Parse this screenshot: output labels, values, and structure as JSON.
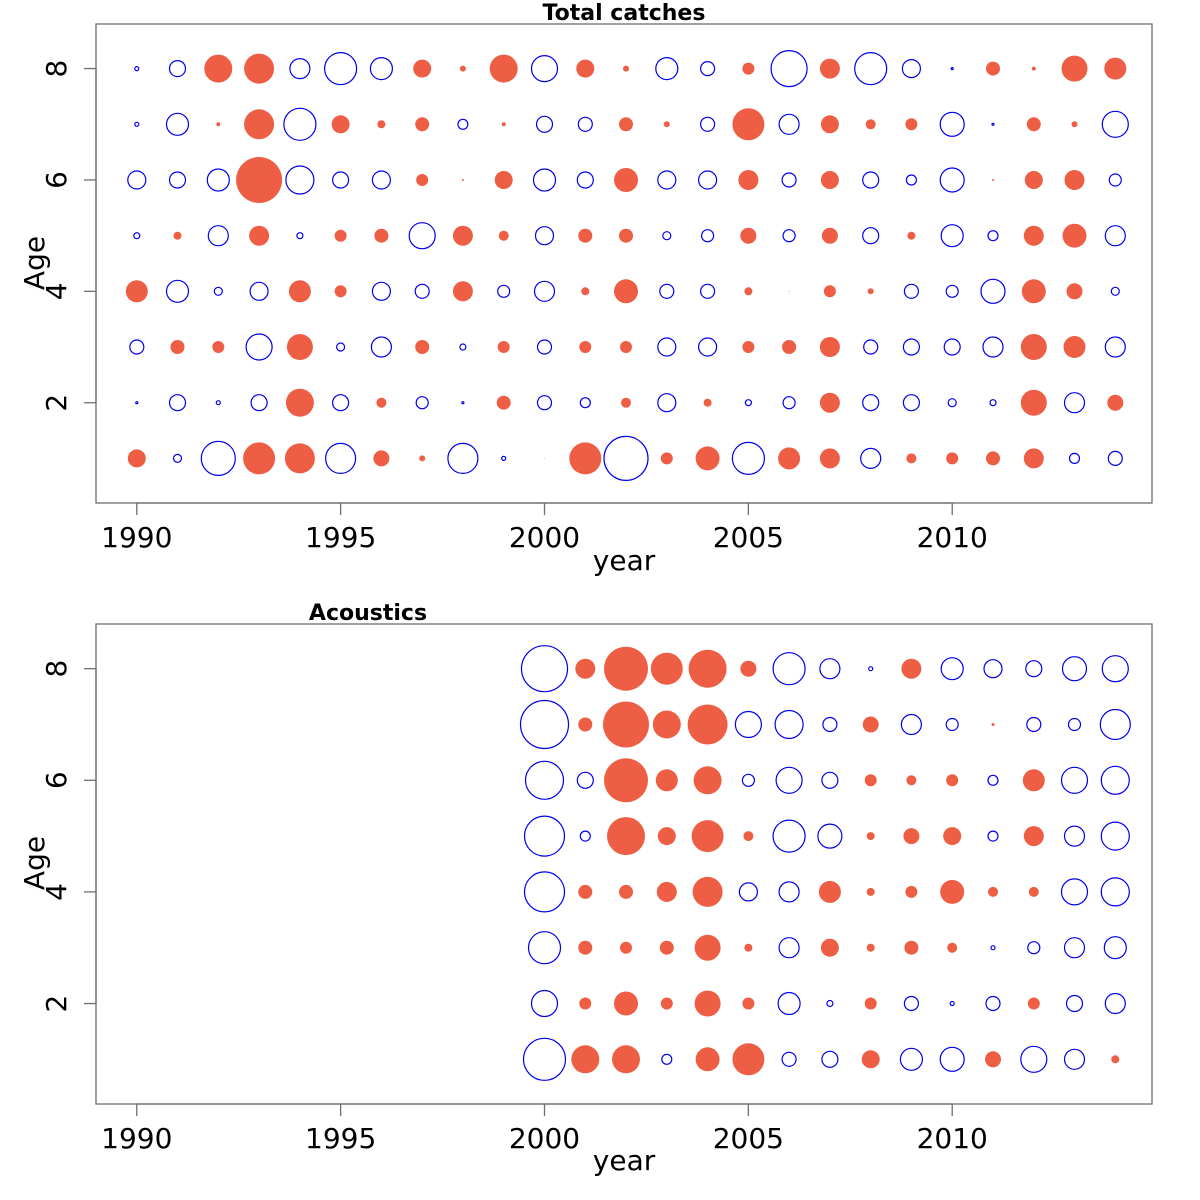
{
  "colors": {
    "positive": "#EE5E44",
    "negative": "#0000EE"
  },
  "chart_data": [
    {
      "type": "scatter",
      "subtype": "bubble",
      "title": "Total catches",
      "xlabel": "year",
      "ylabel": "Age",
      "xlim": [
        1989,
        2014.9
      ],
      "ylim": [
        0.2,
        8.8
      ],
      "xticks": [
        1990,
        1995,
        2000,
        2005,
        2010
      ],
      "yticks": [
        2,
        4,
        6,
        8
      ],
      "encoding": "radius proportional to |value|; positive = filled red, negative = open blue",
      "years": [
        1990,
        1991,
        1992,
        1993,
        1994,
        1995,
        1996,
        1997,
        1998,
        1999,
        2000,
        2001,
        2002,
        2003,
        2004,
        2005,
        2006,
        2007,
        2008,
        2009,
        2010,
        2011,
        2012,
        2013,
        2014
      ],
      "ages": [
        8,
        7,
        6,
        5,
        4,
        3,
        2,
        1
      ],
      "values": {
        "8": [
          -2,
          -8,
          14,
          15,
          -10,
          -16,
          -11,
          9,
          3,
          14,
          -13,
          9,
          3,
          -11,
          -7,
          6,
          -18,
          10,
          -16,
          -9,
          -1,
          7,
          2,
          13,
          11
        ],
        "7": [
          -2,
          -11,
          2,
          15,
          -16,
          9,
          4,
          7,
          -5,
          2,
          -8,
          -7,
          7,
          3,
          -7,
          16,
          -10,
          9,
          5,
          6,
          -12,
          -1,
          7,
          3,
          -13
        ],
        "6": [
          -9,
          -8,
          -11,
          23,
          -14,
          -8,
          -9,
          6,
          1,
          9,
          -11,
          -8,
          12,
          -9,
          -9,
          10,
          -7,
          9,
          -8,
          -5,
          -12,
          1,
          9,
          10,
          -6
        ],
        "5": [
          -3,
          4,
          -10,
          10,
          -3,
          6,
          7,
          -13,
          10,
          5,
          -9,
          7,
          7,
          -4,
          -6,
          8,
          -6,
          8,
          -8,
          4,
          -11,
          -5,
          10,
          12,
          -10
        ],
        "4": [
          11,
          -11,
          -4,
          -9,
          11,
          6,
          -9,
          -7,
          10,
          -6,
          -10,
          4,
          12,
          -7,
          -7,
          4,
          0.5,
          6,
          3,
          -7,
          -6,
          -12,
          12,
          8,
          -4
        ],
        "3": [
          -7,
          7,
          6,
          -13,
          13,
          -4,
          -10,
          7,
          -3,
          6,
          -7,
          6,
          6,
          -9,
          -9,
          6,
          7,
          10,
          -7,
          -8,
          -8,
          -10,
          13,
          11,
          -10
        ],
        "2": [
          -1,
          -8,
          -2,
          -8,
          14,
          -8,
          5,
          -6,
          -1,
          7,
          -7,
          -5,
          5,
          -9,
          4,
          -3,
          -6,
          10,
          -8,
          -8,
          -4,
          -3,
          13,
          -10,
          8
        ],
        "1": [
          9,
          -4,
          -17,
          16,
          15,
          -15,
          8,
          3,
          -15,
          -2,
          0.3,
          16,
          -22,
          6,
          12,
          -16,
          11,
          10,
          -10,
          5,
          6,
          7,
          10,
          -5,
          -7
        ]
      }
    },
    {
      "type": "scatter",
      "subtype": "bubble",
      "title": "Acoustics",
      "xlabel": "year",
      "ylabel": "Age",
      "xlim": [
        1989,
        2014.9
      ],
      "ylim": [
        0.2,
        8.8
      ],
      "xticks": [
        1990,
        1995,
        2000,
        2005,
        2010
      ],
      "yticks": [
        2,
        4,
        6,
        8
      ],
      "encoding": "radius proportional to |value|; positive = filled red, negative = open blue",
      "years": [
        2000,
        2001,
        2002,
        2003,
        2004,
        2005,
        2006,
        2007,
        2008,
        2009,
        2010,
        2011,
        2012,
        2013,
        2014
      ],
      "ages": [
        8,
        7,
        6,
        5,
        4,
        3,
        2,
        1
      ],
      "values": {
        "8": [
          -23,
          10,
          22,
          16,
          19,
          8,
          -16,
          -10,
          -2,
          10,
          -11,
          -9,
          -8,
          -12,
          -13
        ],
        "7": [
          -24,
          7,
          23,
          14,
          20,
          -13,
          -14,
          -7,
          8,
          -10,
          -6,
          1.5,
          -7,
          -6,
          -15
        ],
        "6": [
          -19,
          -8,
          22,
          11,
          14,
          -6,
          -13,
          -8,
          6,
          5,
          6,
          -5,
          11,
          -13,
          -14
        ],
        "5": [
          -20,
          -5,
          19,
          9,
          16,
          5,
          -16,
          -12,
          4,
          8,
          9,
          -5,
          10,
          -10,
          -14
        ],
        "4": [
          -20,
          7,
          7,
          10,
          15,
          -9,
          -10,
          11,
          4,
          6,
          12,
          5,
          5,
          -13,
          -14
        ],
        "3": [
          -16,
          7,
          6,
          7,
          13,
          4,
          -10,
          9,
          4,
          7,
          5,
          -2,
          -6,
          -10,
          -11
        ],
        "2": [
          -13,
          6,
          12,
          6,
          13,
          6,
          -11,
          -3,
          6,
          -7,
          -2,
          -7,
          6,
          -8,
          -10
        ],
        "1": [
          -21,
          14,
          14,
          -5,
          12,
          16,
          -7,
          -8,
          9,
          -11,
          -12,
          8,
          -13,
          -10,
          4
        ]
      }
    }
  ]
}
